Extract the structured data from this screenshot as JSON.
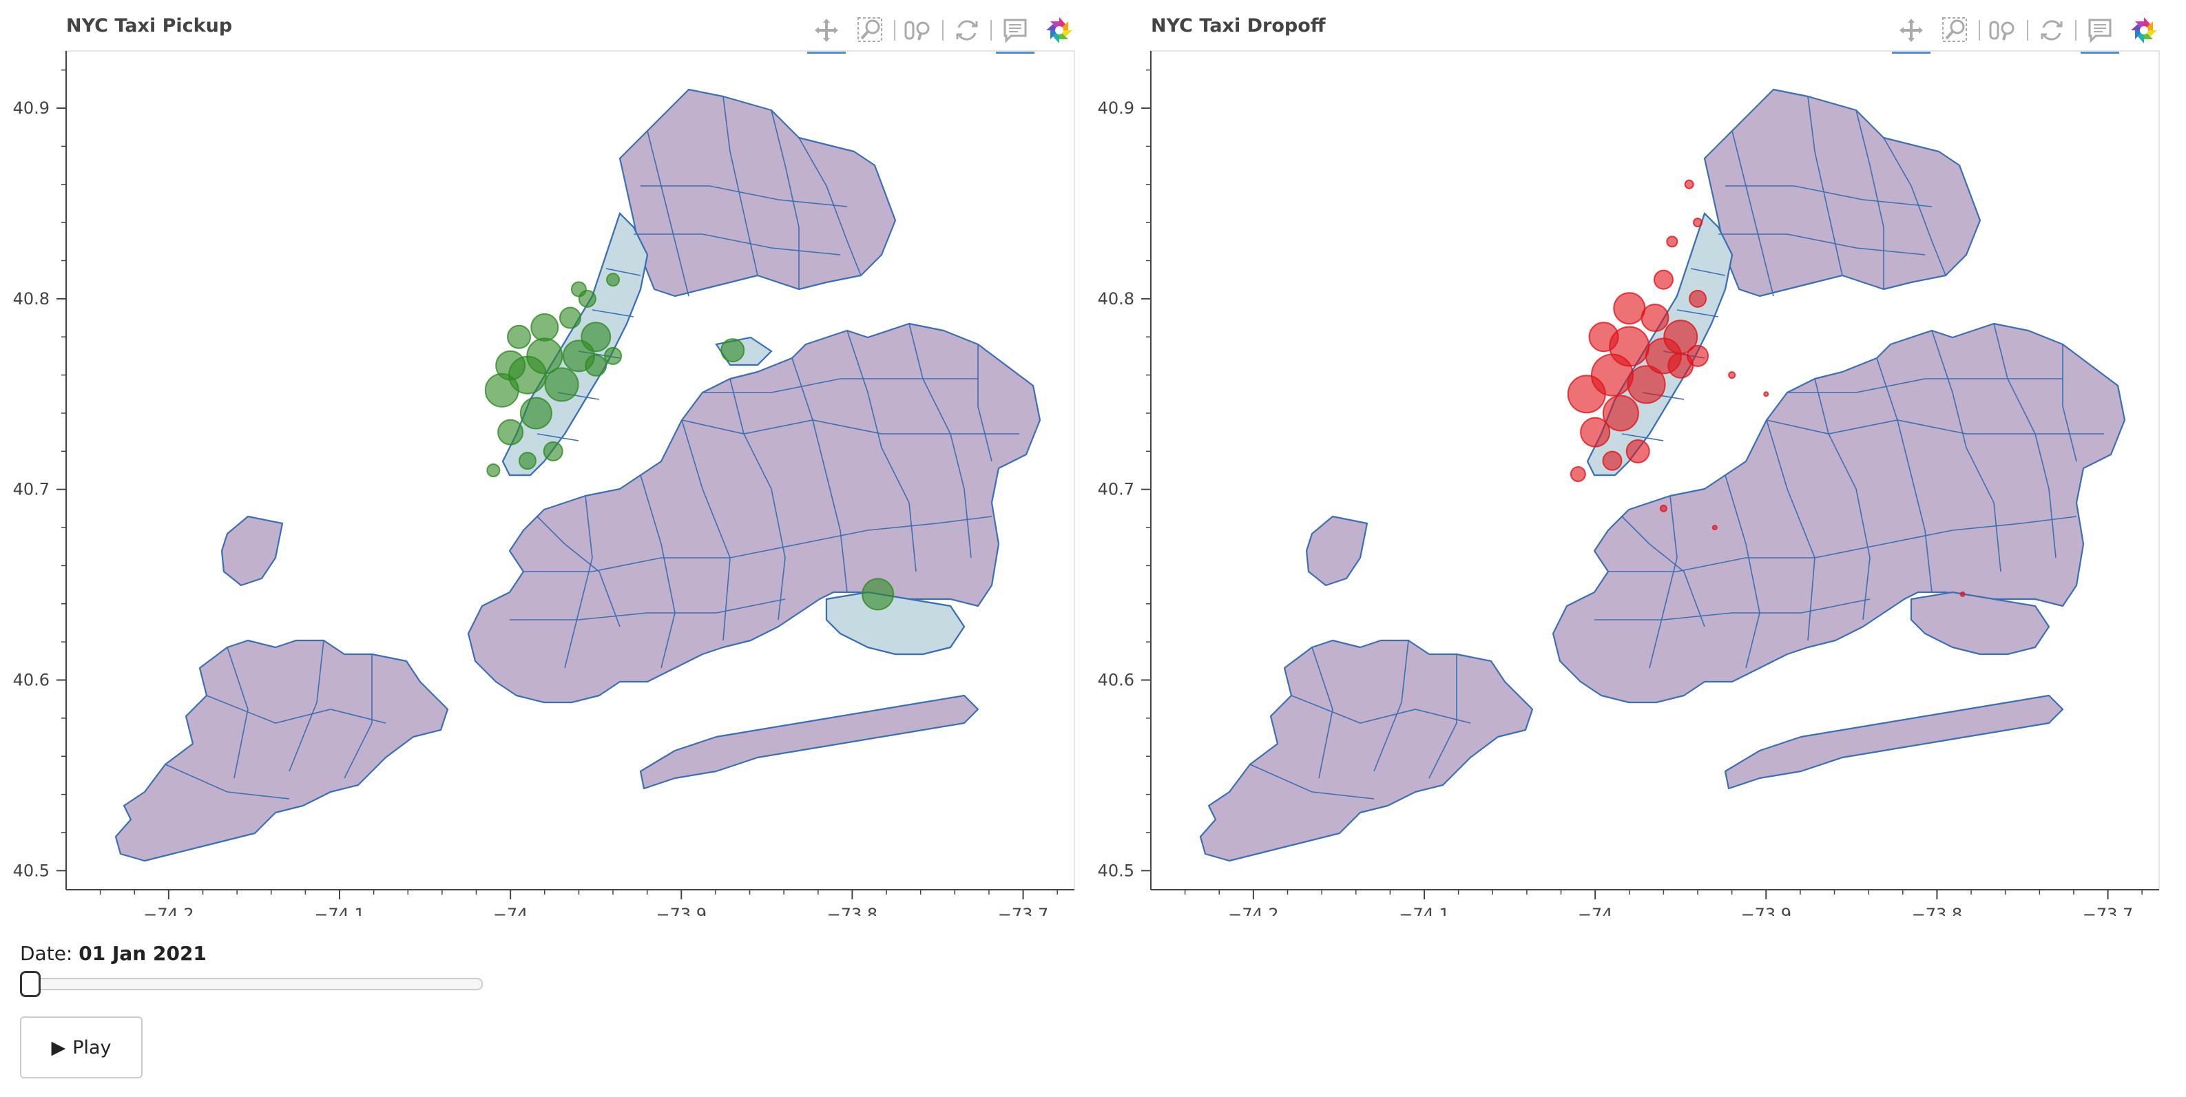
{
  "panels": [
    {
      "id": "pickup",
      "title": "NYC Taxi Pickup",
      "marker_color": "#2e8b22",
      "x_ticks": [
        "−74.2",
        "−74.1",
        "−74",
        "−73.9",
        "−73.8",
        "−73.7"
      ],
      "y_ticks": [
        "40.9",
        "40.8",
        "40.7",
        "40.6",
        "40.5"
      ]
    },
    {
      "id": "dropoff",
      "title": "NYC Taxi Dropoff",
      "marker_color": "#e0141a",
      "x_ticks": [
        "−74.2",
        "−74.1",
        "−74",
        "−73.9",
        "−73.8",
        "−73.7"
      ],
      "y_ticks": [
        "40.9",
        "40.8",
        "40.7",
        "40.6",
        "40.5"
      ]
    }
  ],
  "toolbar": {
    "tools": [
      {
        "name": "pan-tool",
        "icon": "move-arrows-icon",
        "active": true
      },
      {
        "name": "box-zoom-tool",
        "icon": "box-zoom-icon",
        "active": false
      },
      {
        "name": "wheel-zoom-tool",
        "icon": "wheel-zoom-icon",
        "active": false
      },
      {
        "name": "reset-tool",
        "icon": "reset-icon",
        "active": false
      },
      {
        "name": "hover-tool",
        "icon": "hover-tooltip-icon",
        "active": true
      },
      {
        "name": "bokeh-logo",
        "icon": "bokeh-logo-icon",
        "active": false
      }
    ]
  },
  "controls": {
    "date_label": "Date:",
    "date_value": "01 Jan 2021",
    "slider_fraction": 0.0,
    "play_label": "Play",
    "play_icon": "▶"
  },
  "colors": {
    "zone_fill": "#c2b1cc",
    "zone_stroke": "#3a6fb5",
    "highlight_fill": "#c6dae2",
    "axis": "#444444"
  },
  "chart_data": [
    {
      "type": "scatter",
      "title": "NYC Taxi Pickup",
      "xlim": [
        -74.26,
        -73.67
      ],
      "ylim": [
        40.49,
        40.93
      ],
      "series": [
        {
          "x": -74.005,
          "y": 40.752,
          "size": 16
        },
        {
          "x": -73.99,
          "y": 40.76,
          "size": 18
        },
        {
          "x": -73.98,
          "y": 40.77,
          "size": 17
        },
        {
          "x": -73.985,
          "y": 40.74,
          "size": 15
        },
        {
          "x": -74.0,
          "y": 40.73,
          "size": 12
        },
        {
          "x": -73.97,
          "y": 40.755,
          "size": 16
        },
        {
          "x": -73.96,
          "y": 40.77,
          "size": 15
        },
        {
          "x": -73.95,
          "y": 40.78,
          "size": 14
        },
        {
          "x": -73.965,
          "y": 40.79,
          "size": 10
        },
        {
          "x": -73.98,
          "y": 40.785,
          "size": 13
        },
        {
          "x": -73.96,
          "y": 40.805,
          "size": 7
        },
        {
          "x": -73.94,
          "y": 40.81,
          "size": 6
        },
        {
          "x": -73.975,
          "y": 40.72,
          "size": 9
        },
        {
          "x": -73.99,
          "y": 40.715,
          "size": 8
        },
        {
          "x": -74.01,
          "y": 40.71,
          "size": 6
        },
        {
          "x": -73.95,
          "y": 40.765,
          "size": 10
        },
        {
          "x": -73.94,
          "y": 40.77,
          "size": 8
        },
        {
          "x": -73.87,
          "y": 40.773,
          "size": 11
        },
        {
          "x": -73.785,
          "y": 40.645,
          "size": 15
        },
        {
          "x": -73.955,
          "y": 40.8,
          "size": 8
        },
        {
          "x": -73.995,
          "y": 40.78,
          "size": 11
        },
        {
          "x": -74.0,
          "y": 40.765,
          "size": 14
        }
      ]
    },
    {
      "type": "scatter",
      "title": "NYC Taxi Dropoff",
      "xlim": [
        -74.26,
        -73.67
      ],
      "ylim": [
        40.49,
        40.93
      ],
      "series": [
        {
          "x": -74.005,
          "y": 40.75,
          "size": 18
        },
        {
          "x": -73.99,
          "y": 40.76,
          "size": 20
        },
        {
          "x": -73.98,
          "y": 40.775,
          "size": 19
        },
        {
          "x": -73.985,
          "y": 40.74,
          "size": 17
        },
        {
          "x": -74.0,
          "y": 40.73,
          "size": 14
        },
        {
          "x": -73.97,
          "y": 40.755,
          "size": 18
        },
        {
          "x": -73.96,
          "y": 40.77,
          "size": 17
        },
        {
          "x": -73.95,
          "y": 40.78,
          "size": 16
        },
        {
          "x": -73.965,
          "y": 40.79,
          "size": 13
        },
        {
          "x": -73.98,
          "y": 40.795,
          "size": 15
        },
        {
          "x": -73.96,
          "y": 40.81,
          "size": 9
        },
        {
          "x": -73.94,
          "y": 40.8,
          "size": 8
        },
        {
          "x": -73.975,
          "y": 40.72,
          "size": 11
        },
        {
          "x": -73.99,
          "y": 40.715,
          "size": 9
        },
        {
          "x": -74.01,
          "y": 40.708,
          "size": 7
        },
        {
          "x": -73.95,
          "y": 40.765,
          "size": 12
        },
        {
          "x": -73.94,
          "y": 40.77,
          "size": 10
        },
        {
          "x": -73.955,
          "y": 40.83,
          "size": 5
        },
        {
          "x": -73.94,
          "y": 40.84,
          "size": 4
        },
        {
          "x": -73.945,
          "y": 40.86,
          "size": 4
        },
        {
          "x": -73.92,
          "y": 40.76,
          "size": 3
        },
        {
          "x": -73.9,
          "y": 40.75,
          "size": 2
        },
        {
          "x": -73.93,
          "y": 40.68,
          "size": 2
        },
        {
          "x": -73.785,
          "y": 40.645,
          "size": 2
        },
        {
          "x": -73.96,
          "y": 40.69,
          "size": 3
        },
        {
          "x": -73.995,
          "y": 40.78,
          "size": 14
        }
      ]
    }
  ]
}
